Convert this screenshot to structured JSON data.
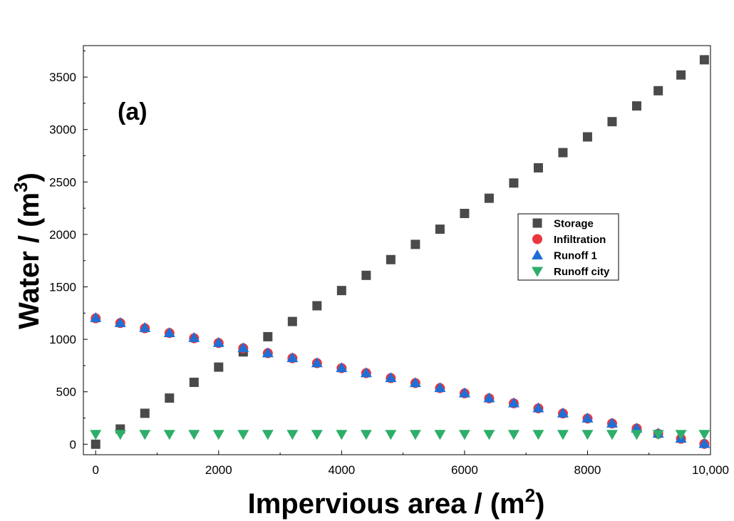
{
  "chart_data": {
    "type": "scatter",
    "panel_label": "(a)",
    "xlabel_main": "Impervious area / (m",
    "xlabel_sup": "2",
    "xlabel_end": ")",
    "ylabel_main": "Water / (m",
    "ylabel_sup": "3",
    "ylabel_end": ")",
    "xlim": [
      -200,
      10000
    ],
    "ylim": [
      -100,
      3800
    ],
    "x_ticks": [
      0,
      2000,
      4000,
      6000,
      8000,
      10000
    ],
    "x_tick_labels": [
      "0",
      "2000",
      "4000",
      "6000",
      "8000",
      "10,000"
    ],
    "y_ticks": [
      0,
      500,
      1000,
      1500,
      2000,
      2500,
      3000,
      3500
    ],
    "y_tick_labels": [
      "0",
      "500",
      "1000",
      "1500",
      "2000",
      "2500",
      "3000",
      "3500"
    ],
    "legend_position": "center-right",
    "x": [
      0,
      400,
      800,
      1200,
      1600,
      2000,
      2400,
      2800,
      3200,
      3600,
      4000,
      4400,
      4800,
      5200,
      5600,
      6000,
      6400,
      6800,
      7200,
      7600,
      8000,
      8400,
      8800,
      9150,
      9520,
      9900
    ],
    "series": [
      {
        "name": "Storage",
        "marker": "square",
        "color": "#4a4a4a",
        "values": [
          0,
          145,
          295,
          440,
          590,
          735,
          880,
          1025,
          1170,
          1320,
          1465,
          1610,
          1760,
          1905,
          2050,
          2200,
          2345,
          2490,
          2635,
          2780,
          2930,
          3075,
          3225,
          3370,
          3520,
          3665
        ]
      },
      {
        "name": "Infiltration",
        "marker": "circle",
        "color": "#e8383d",
        "values": [
          1200,
          1155,
          1105,
          1060,
          1010,
          965,
          915,
          868,
          820,
          773,
          725,
          678,
          630,
          583,
          535,
          485,
          437,
          390,
          342,
          293,
          245,
          198,
          150,
          100,
          52,
          3
        ]
      },
      {
        "name": "Runoff 1",
        "marker": "triangle-up",
        "color": "#1f6fd6",
        "values": [
          1205,
          1158,
          1110,
          1062,
          1015,
          968,
          918,
          870,
          823,
          775,
          728,
          680,
          633,
          585,
          538,
          488,
          440,
          393,
          345,
          296,
          248,
          200,
          152,
          103,
          55,
          5
        ]
      },
      {
        "name": "Runoff city",
        "marker": "triangle-down",
        "color": "#2eae6b",
        "values": [
          95,
          95,
          95,
          95,
          95,
          95,
          95,
          95,
          95,
          95,
          95,
          95,
          95,
          95,
          95,
          95,
          95,
          95,
          95,
          95,
          95,
          95,
          95,
          95,
          95,
          95
        ]
      }
    ]
  }
}
